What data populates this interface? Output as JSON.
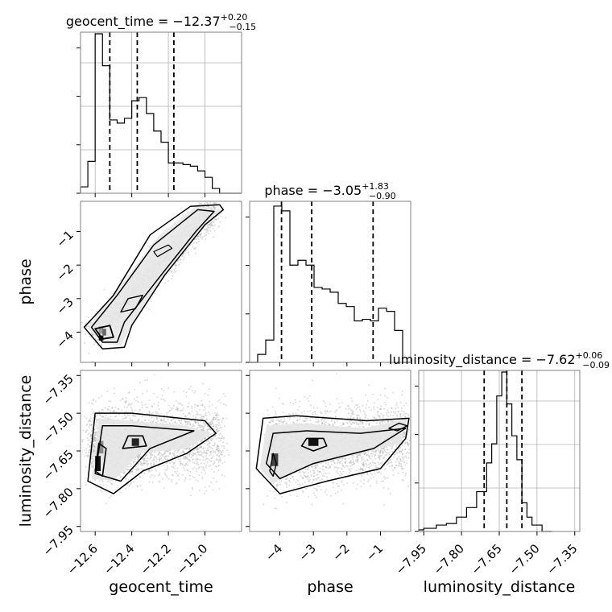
{
  "chart_data": [
    {
      "type": "histogram",
      "parameter": "geocent_time",
      "title_name": "geocent_time",
      "title_value": "−12.37",
      "title_plus": "+0.20",
      "title_minus": "−0.15",
      "xlim": [
        -12.68,
        -11.8
      ],
      "bins_x": [
        -12.68,
        -12.64,
        -12.6,
        -12.56,
        -12.52,
        -12.48,
        -12.44,
        -12.4,
        -12.36,
        -12.32,
        -12.28,
        -12.24,
        -12.2,
        -12.16,
        -12.12,
        -12.08,
        -12.04,
        -12.0,
        -11.96,
        -11.92,
        -11.88,
        -11.84,
        -11.8
      ],
      "counts": [
        0.04,
        0.2,
        1.0,
        0.8,
        0.46,
        0.44,
        0.47,
        0.58,
        0.6,
        0.5,
        0.39,
        0.32,
        0.19,
        0.19,
        0.18,
        0.17,
        0.14,
        0.1,
        0.03,
        0.0,
        0.0,
        0.0
      ],
      "quantiles": [
        -12.52,
        -12.37,
        -12.17
      ]
    },
    {
      "type": "histogram",
      "parameter": "phase",
      "title_name": "phase",
      "title_value": "−3.05",
      "title_plus": "+1.83",
      "title_minus": "−0.90",
      "xlim": [
        -4.9,
        -0.1
      ],
      "bins_x": [
        -4.9,
        -4.66,
        -4.42,
        -4.18,
        -3.94,
        -3.7,
        -3.46,
        -3.22,
        -2.98,
        -2.74,
        -2.5,
        -2.26,
        -2.02,
        -1.78,
        -1.54,
        -1.3,
        -1.06,
        -0.82,
        -0.58,
        -0.34,
        -0.1
      ],
      "counts": [
        0.0,
        0.05,
        0.14,
        0.98,
        0.95,
        0.61,
        0.64,
        0.61,
        0.47,
        0.46,
        0.44,
        0.37,
        0.35,
        0.26,
        0.27,
        0.26,
        0.34,
        0.32,
        0.2,
        0.0
      ],
      "quantiles": [
        -3.95,
        -3.05,
        -1.22
      ]
    },
    {
      "type": "histogram",
      "parameter": "luminosity_distance",
      "title_name": "luminosity_distance",
      "title_value": "−7.62",
      "title_plus": "+0.06",
      "title_minus": "−0.09",
      "xlim": [
        -7.97,
        -7.33
      ],
      "bins_x": [
        -7.97,
        -7.95,
        -7.9,
        -7.86,
        -7.82,
        -7.78,
        -7.74,
        -7.7,
        -7.68,
        -7.66,
        -7.64,
        -7.62,
        -7.6,
        -7.58,
        -7.56,
        -7.54,
        -7.52,
        -7.48,
        -7.44
      ],
      "counts": [
        0.01,
        0.02,
        0.04,
        0.05,
        0.09,
        0.15,
        0.25,
        0.43,
        0.55,
        0.85,
        1.0,
        0.8,
        0.6,
        0.45,
        0.18,
        0.09,
        0.04,
        0.0
      ],
      "quantiles": [
        -7.71,
        -7.62,
        -7.56
      ]
    },
    {
      "type": "scatter-contour",
      "x_param": "phase_vs_geocent_time",
      "x": "geocent_time",
      "y": "phase",
      "xlim": [
        -12.68,
        -11.8
      ],
      "ylim": [
        -4.9,
        -0.1
      ],
      "ylabel": "phase",
      "trend": [
        [
          -12.6,
          -4.1
        ],
        [
          -12.4,
          -3.0
        ],
        [
          -12.2,
          -1.8
        ],
        [
          -11.96,
          -0.3
        ]
      ]
    },
    {
      "type": "scatter-contour",
      "x": "geocent_time",
      "y": "luminosity_distance",
      "xlim": [
        -12.68,
        -11.8
      ],
      "ylim": [
        -7.97,
        -7.33
      ],
      "xlabel": "geocent_time",
      "ylabel": "luminosity_distance",
      "peak": [
        -12.38,
        -7.61
      ]
    },
    {
      "type": "scatter-contour",
      "x": "phase",
      "y": "luminosity_distance",
      "xlim": [
        -4.9,
        -0.1
      ],
      "ylim": [
        -7.97,
        -7.33
      ],
      "xlabel": "phase",
      "peak": [
        -3.0,
        -7.61
      ]
    }
  ],
  "ticks": {
    "geocent_time": [
      {
        "v": -12.6,
        "label": "−12.6"
      },
      {
        "v": -12.4,
        "label": "−12.4"
      },
      {
        "v": -12.2,
        "label": "−12.2"
      },
      {
        "v": -12.0,
        "label": "−12.0"
      }
    ],
    "phase": [
      {
        "v": -4,
        "label": "−4"
      },
      {
        "v": -3,
        "label": "−3"
      },
      {
        "v": -2,
        "label": "−2"
      },
      {
        "v": -1,
        "label": "−1"
      }
    ],
    "luminosity_distance": [
      {
        "v": -7.95,
        "label": "−7.95"
      },
      {
        "v": -7.8,
        "label": "−7.80"
      },
      {
        "v": -7.65,
        "label": "−7.65"
      },
      {
        "v": -7.5,
        "label": "−7.50"
      },
      {
        "v": -7.35,
        "label": "−7.35"
      }
    ]
  },
  "labels": {
    "x_geocent_time": "geocent_time",
    "x_phase": "phase",
    "x_luminosity_distance": "luminosity_distance",
    "y_phase": "phase",
    "y_luminosity_distance": "luminosity_distance"
  },
  "colors": {
    "line": "#000000",
    "grid": "#b0b0b0",
    "axes": "#808080",
    "scatter": "#9a9a9a"
  }
}
